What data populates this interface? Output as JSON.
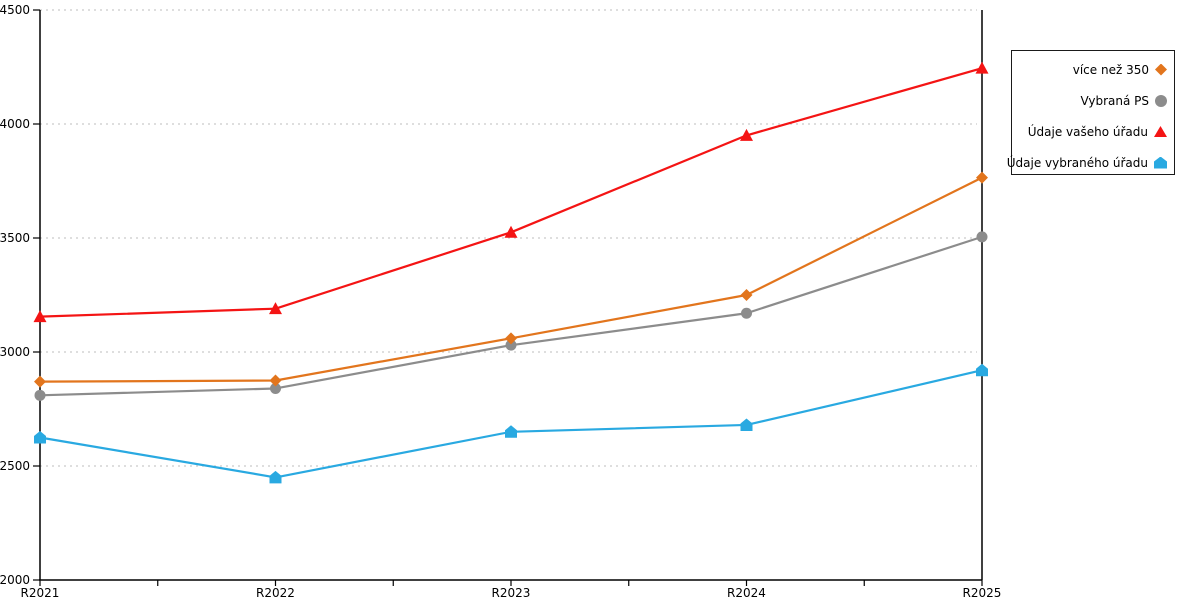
{
  "chart_data": {
    "type": "line",
    "title": "",
    "xlabel": "",
    "ylabel": "",
    "x_categories": [
      "R2021",
      "R2022",
      "R2023",
      "R2024",
      "R2025"
    ],
    "y_ticks": [
      2000,
      2500,
      3000,
      3500,
      4000,
      4500
    ],
    "ylim": [
      2000,
      4500
    ],
    "grid": "horizontal dotted gridlines",
    "legend_position": "outside-right, boxed",
    "series": [
      {
        "name": "více než 350",
        "marker": "diamond",
        "color": "#E2751D",
        "values": [
          2870,
          2875,
          3060,
          3250,
          3765
        ]
      },
      {
        "name": "Vybraná PS",
        "marker": "circle",
        "color": "#8C8C8C",
        "values": [
          2810,
          2840,
          3030,
          3170,
          3505
        ]
      },
      {
        "name": "Údaje vašeho úřadu",
        "marker": "triangle",
        "color": "#F41414",
        "values": [
          3155,
          3190,
          3525,
          3950,
          4245
        ]
      },
      {
        "name": "Údaje vybraného úřadu",
        "marker": "pentagon",
        "color": "#29A9E1",
        "values": [
          2625,
          2450,
          2650,
          2680,
          2920
        ]
      }
    ]
  },
  "colors": {
    "background": "#FFFFFF",
    "axis": "#000000",
    "grid": "#C9C9C9",
    "tick_label": "#000000"
  }
}
